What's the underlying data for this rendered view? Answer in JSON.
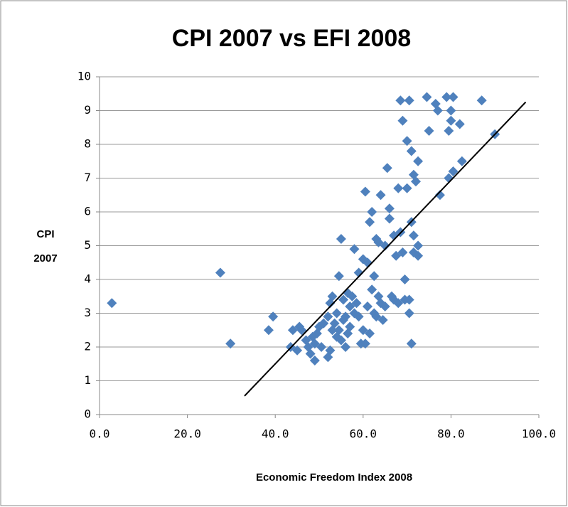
{
  "chart_data": {
    "type": "scatter",
    "title": "CPI 2007 vs EFI 2008",
    "xlabel": "Economic Freedom Index 2008",
    "ylabel": [
      "CPI",
      "2007"
    ],
    "color": "#4f81bd",
    "marker": "diamond",
    "grid": true,
    "xlim": [
      0,
      100
    ],
    "ylim": [
      0,
      10
    ],
    "xticks": [
      {
        "value": 0,
        "label": "0.0"
      },
      {
        "value": 20,
        "label": "20.0"
      },
      {
        "value": 40,
        "label": "40.0"
      },
      {
        "value": 60,
        "label": "60.0"
      },
      {
        "value": 80,
        "label": "80.0"
      },
      {
        "value": 100,
        "label": "100.0"
      }
    ],
    "yticks": [
      0,
      1,
      2,
      3,
      4,
      5,
      6,
      7,
      8,
      9,
      10
    ],
    "x": [
      2.8,
      27.5,
      29.8,
      38.5,
      39.5,
      43.5,
      44,
      45,
      45.5,
      46,
      47,
      47.5,
      48,
      48.5,
      49,
      49,
      49.5,
      50,
      50.5,
      51,
      52,
      52,
      52.5,
      52.5,
      53,
      53,
      53.5,
      54,
      54,
      54.5,
      54.5,
      55,
      55,
      55.5,
      55.5,
      56,
      56,
      56.5,
      56.5,
      57,
      57,
      57.5,
      58,
      58,
      58.5,
      59,
      59,
      59.5,
      60,
      60,
      60.5,
      60.5,
      61,
      61,
      61.5,
      61.5,
      62,
      62,
      62.5,
      62.5,
      63,
      63,
      63.5,
      63.5,
      64,
      64,
      64.5,
      65,
      65,
      65.5,
      66,
      66,
      66.5,
      67,
      67,
      67.5,
      68,
      68,
      68.5,
      68.5,
      69,
      69,
      69.5,
      69.5,
      70,
      70,
      70.5,
      70.5,
      70.5,
      71,
      71,
      71,
      71.5,
      71.5,
      71.5,
      72,
      72.5,
      72.5,
      72.5,
      74.5,
      75,
      76.5,
      77,
      77.5,
      79,
      79.5,
      79.5,
      80,
      80,
      80.5,
      80.5,
      82,
      82.5,
      87,
      90
    ],
    "values": [
      3.3,
      4.2,
      2.1,
      2.5,
      2.9,
      2.0,
      2.5,
      1.9,
      2.6,
      2.5,
      2.2,
      2.0,
      1.8,
      2.3,
      1.6,
      2.1,
      2.4,
      2.6,
      2.0,
      2.7,
      1.7,
      2.9,
      1.9,
      3.3,
      2.5,
      3.5,
      2.7,
      2.3,
      3.0,
      4.1,
      2.5,
      5.2,
      2.2,
      2.8,
      3.4,
      2.0,
      2.9,
      3.6,
      2.4,
      2.6,
      3.2,
      3.5,
      3.0,
      4.9,
      3.3,
      4.2,
      2.9,
      2.1,
      2.5,
      4.6,
      6.6,
      2.1,
      4.5,
      3.2,
      5.7,
      2.4,
      3.7,
      6.0,
      4.1,
      3.0,
      5.2,
      2.9,
      3.5,
      5.1,
      3.3,
      6.5,
      2.8,
      5.0,
      3.2,
      7.3,
      5.8,
      6.1,
      3.5,
      3.4,
      5.3,
      4.7,
      6.7,
      3.3,
      9.3,
      5.4,
      8.7,
      4.8,
      4.0,
      3.4,
      6.7,
      8.1,
      3.0,
      9.3,
      3.4,
      5.7,
      2.1,
      7.8,
      7.1,
      4.8,
      5.3,
      6.9,
      7.5,
      4.7,
      5.0,
      9.4,
      8.4,
      9.2,
      9.0,
      6.5,
      9.4,
      8.4,
      7.0,
      8.7,
      9.0,
      9.4,
      7.2,
      8.6,
      7.5,
      9.3,
      8.3
    ],
    "trendline": {
      "color": "#000000",
      "x": [
        33,
        97
      ],
      "y": [
        0.55,
        9.25
      ]
    }
  }
}
